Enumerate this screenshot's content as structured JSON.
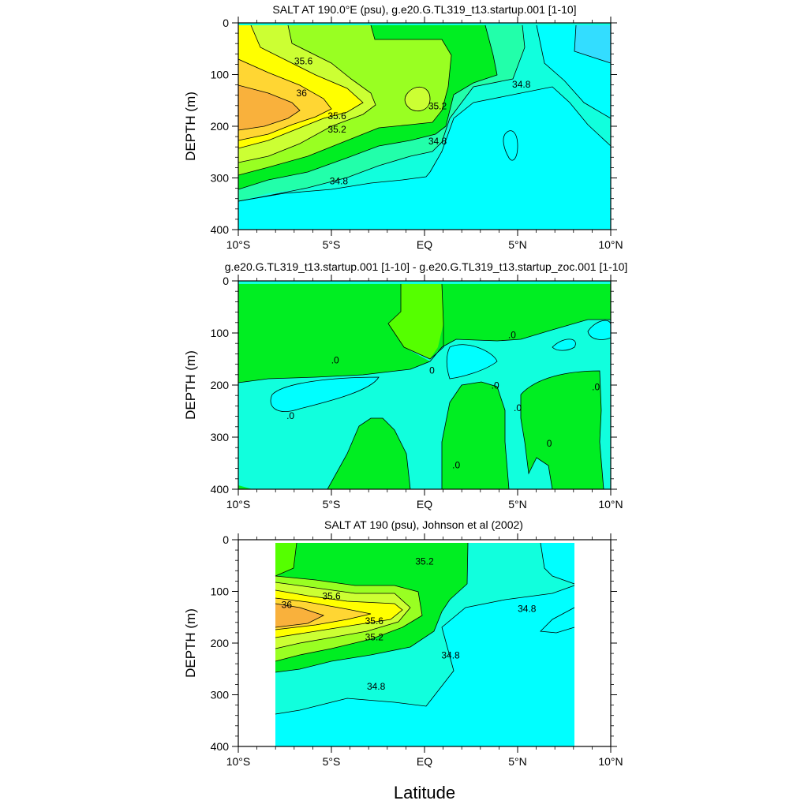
{
  "figure": {
    "xlabel": "Latitude",
    "x_ticks": [
      "10°S",
      "5°S",
      "EQ",
      "5°N",
      "10°N"
    ],
    "x_tick_values": [
      -10,
      -5,
      0,
      5,
      10
    ],
    "y_ticks": [
      "0",
      "100",
      "200",
      "300",
      "400"
    ],
    "y_tick_values": [
      0,
      100,
      200,
      300,
      400
    ]
  },
  "colors": {
    "orange": "#f9b13c",
    "gold": "#ffd633",
    "yellow": "#ffff00",
    "yellow_green": "#ccff33",
    "light_green": "#99ff22",
    "green": "#55ff00",
    "bright_green": "#00ee22",
    "spring_green": "#22ffaa",
    "aquamarine": "#11ffdd",
    "cyan": "#00ffff",
    "sky": "#33ddff"
  },
  "chart_data": [
    {
      "type": "contour",
      "title": "SALT AT 190.0°E (psu), g.e20.G.TL319_t13.startup.001 [1-10]",
      "xlabel": "",
      "ylabel": "DEPTH (m)",
      "xlim": [
        -10,
        10
      ],
      "ylim": [
        400,
        0
      ],
      "variable": "salinity (psu)",
      "contour_labels": [
        {
          "text": "35.6",
          "lat": -6.5,
          "depth": 80
        },
        {
          "text": "36",
          "lat": -6.6,
          "depth": 142
        },
        {
          "text": "35.6",
          "lat": -4.7,
          "depth": 186
        },
        {
          "text": "35.2",
          "lat": -4.7,
          "depth": 212
        },
        {
          "text": "34.8",
          "lat": -4.6,
          "depth": 312
        },
        {
          "text": "35.2",
          "lat": 0.7,
          "depth": 167
        },
        {
          "text": "34.8",
          "lat": 0.7,
          "depth": 235
        },
        {
          "text": "34.8",
          "lat": 5.2,
          "depth": 125
        }
      ]
    },
    {
      "type": "contour",
      "title": "g.e20.G.TL319_t13.startup.001 [1-10] - g.e20.G.TL319_t13.startup_zoc.001 [1-10]",
      "xlabel": "",
      "ylabel": "DEPTH (m)",
      "xlim": [
        -10,
        10
      ],
      "ylim": [
        400,
        0
      ],
      "variable": "salinity difference (psu)",
      "contour_labels": [
        {
          "text": ".0",
          "lat": 4.7,
          "depth": 110
        },
        {
          "text": ".0",
          "lat": -4.8,
          "depth": 158
        },
        {
          "text": "0",
          "lat": 0.4,
          "depth": 178
        },
        {
          "text": ".0",
          "lat": -7.2,
          "depth": 265
        },
        {
          "text": ".0",
          "lat": 3.8,
          "depth": 207
        },
        {
          "text": ".0",
          "lat": 5.0,
          "depth": 250
        },
        {
          "text": ".0",
          "lat": 9.2,
          "depth": 210
        },
        {
          "text": "0",
          "lat": 6.7,
          "depth": 318
        },
        {
          "text": ".0",
          "lat": 1.7,
          "depth": 360
        }
      ]
    },
    {
      "type": "contour",
      "title": "SALT AT 190 (psu), Johnson et al (2002)",
      "xlabel": "Latitude",
      "ylabel": "DEPTH (m)",
      "xlim": [
        -10,
        10
      ],
      "ylim": [
        400,
        0
      ],
      "data_lat_range": [
        -8,
        8
      ],
      "variable": "salinity (psu)",
      "contour_labels": [
        {
          "text": "35.2",
          "lat": 0.0,
          "depth": 48
        },
        {
          "text": "35.6",
          "lat": -5.0,
          "depth": 115
        },
        {
          "text": "36",
          "lat": -7.4,
          "depth": 132
        },
        {
          "text": "34.8",
          "lat": 5.5,
          "depth": 140
        },
        {
          "text": "35.6",
          "lat": -2.7,
          "depth": 163
        },
        {
          "text": "35.2",
          "lat": -2.7,
          "depth": 195
        },
        {
          "text": "34.8",
          "lat": 1.4,
          "depth": 230
        },
        {
          "text": "34.8",
          "lat": -2.6,
          "depth": 290
        }
      ]
    }
  ]
}
